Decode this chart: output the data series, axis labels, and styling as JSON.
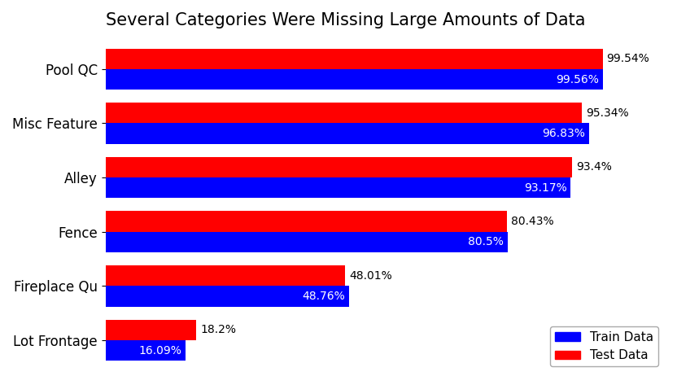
{
  "title": "Several Categories Were Missing Large Amounts of Data",
  "categories": [
    "Lot Frontage",
    "Fireplace Qu",
    "Fence",
    "Alley",
    "Misc Feature",
    "Pool QC"
  ],
  "train_values": [
    16.09,
    48.76,
    80.5,
    93.17,
    96.83,
    99.56
  ],
  "test_values": [
    18.2,
    48.01,
    80.43,
    93.4,
    95.34,
    99.54
  ],
  "train_color": "#0000ff",
  "test_color": "#ff0000",
  "bar_height": 0.38,
  "title_fontsize": 15,
  "tick_fontsize": 12,
  "annotation_fontsize": 10,
  "xlim": [
    0,
    112
  ],
  "background_color": "#ffffff",
  "legend_labels": [
    "Train Data",
    "Test Data"
  ]
}
